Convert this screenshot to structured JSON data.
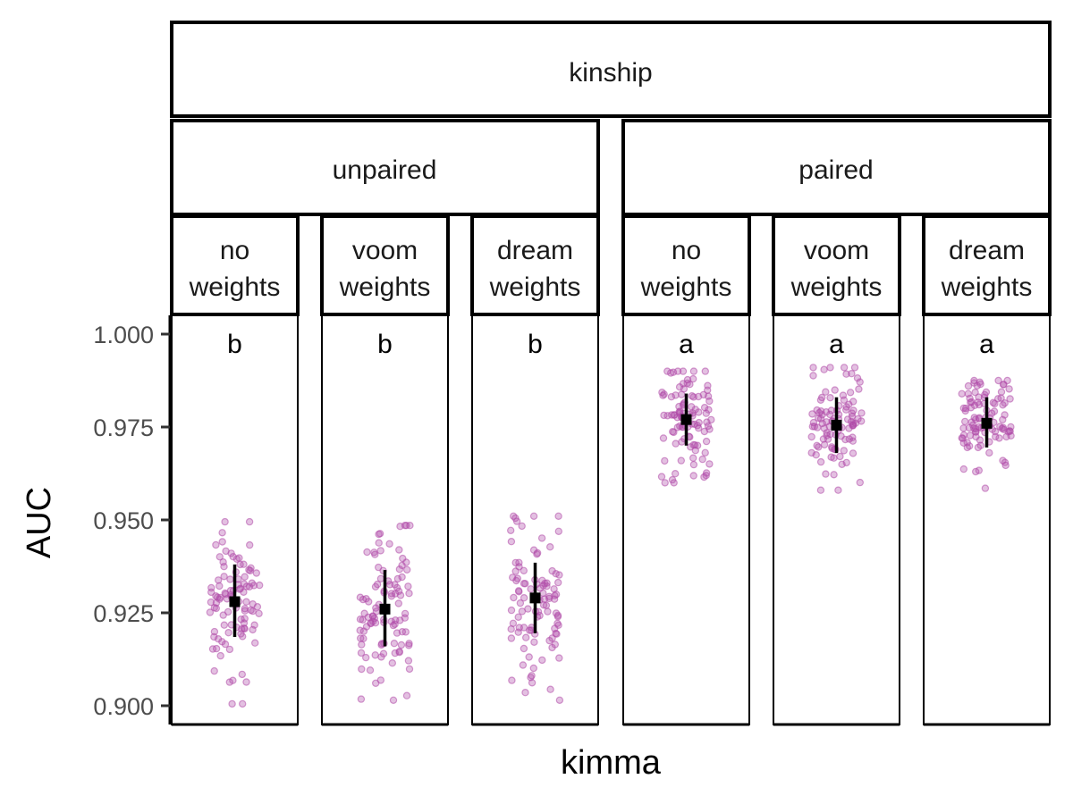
{
  "chart_data": {
    "type": "scatter",
    "title": "",
    "xlabel": "kimma",
    "ylabel": "AUC",
    "ylim": [
      0.895,
      1.004
    ],
    "yticks": [
      "0.900",
      "0.925",
      "0.950",
      "0.975",
      "1.000"
    ],
    "ytick_values": [
      0.9,
      0.925,
      0.95,
      0.975,
      1.0
    ],
    "grid": false,
    "legend": "none",
    "top_strip": "kinship",
    "groups": [
      {
        "label": "unpaired",
        "panels": [
          0,
          1,
          2
        ]
      },
      {
        "label": "paired",
        "panels": [
          3,
          4,
          5
        ]
      }
    ],
    "panels": [
      {
        "label_line1": "no",
        "label_line2": "weights",
        "letter": "b",
        "mean": 0.928,
        "lower": 0.9185,
        "upper": 0.938,
        "points_min": 0.9005,
        "points_max": 0.9495,
        "points_center": 0.928,
        "points_sd": 0.0105
      },
      {
        "label_line1": "voom",
        "label_line2": "weights",
        "letter": "b",
        "mean": 0.926,
        "lower": 0.916,
        "upper": 0.9365,
        "points_min": 0.9015,
        "points_max": 0.9485,
        "points_center": 0.926,
        "points_sd": 0.0105
      },
      {
        "label_line1": "dream",
        "label_line2": "weights",
        "letter": "b",
        "mean": 0.929,
        "lower": 0.9195,
        "upper": 0.9385,
        "points_min": 0.9015,
        "points_max": 0.951,
        "points_center": 0.929,
        "points_sd": 0.0105
      },
      {
        "label_line1": "no",
        "label_line2": "weights",
        "letter": "a",
        "mean": 0.977,
        "lower": 0.97,
        "upper": 0.984,
        "points_min": 0.96,
        "points_max": 0.99,
        "points_center": 0.977,
        "points_sd": 0.0072
      },
      {
        "label_line1": "voom",
        "label_line2": "weights",
        "letter": "a",
        "mean": 0.9755,
        "lower": 0.968,
        "upper": 0.983,
        "points_min": 0.958,
        "points_max": 0.991,
        "points_center": 0.9755,
        "points_sd": 0.0072
      },
      {
        "label_line1": "dream",
        "label_line2": "weights",
        "letter": "a",
        "mean": 0.976,
        "lower": 0.9695,
        "upper": 0.983,
        "points_min": 0.9585,
        "points_max": 0.9875,
        "points_center": 0.976,
        "points_sd": 0.0068
      }
    ],
    "n_points_per_panel": 100,
    "point_color": "#b04aa8",
    "summary_color": "#000000"
  }
}
